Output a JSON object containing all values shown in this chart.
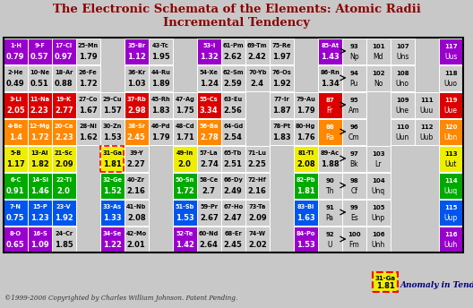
{
  "title1": "The Electronic Schemata of the Elements: Atomic Radii",
  "title2": "Incremental Tendency",
  "copyright": "©1999-2006 Copyrighted by Charles William Johnson. Patent Pending.",
  "anomaly_text": "Anomaly in Tendency",
  "bg_color": "#c8c8c8",
  "rows": [
    {
      "row_idx": 0,
      "cells": [
        {
          "label": "1-H",
          "val": "0.79",
          "col": 0,
          "color": "#9900cc",
          "tc": "white"
        },
        {
          "label": "9-F",
          "val": "0.57",
          "col": 1,
          "color": "#9900cc",
          "tc": "white"
        },
        {
          "label": "17-Cl",
          "val": "0.97",
          "col": 2,
          "color": "#9900cc",
          "tc": "white"
        },
        {
          "label": "25-Mn",
          "val": "1.79",
          "col": 3,
          "color": "#cccccc",
          "tc": "black"
        },
        {
          "label": "35-Br",
          "val": "1.12",
          "col": 5,
          "color": "#9900cc",
          "tc": "white"
        },
        {
          "label": "43-Tc",
          "val": "1.95",
          "col": 6,
          "color": "#cccccc",
          "tc": "black"
        },
        {
          "label": "53-I",
          "val": "1.32",
          "col": 8,
          "color": "#9900cc",
          "tc": "white"
        },
        {
          "label": "61-Pm",
          "val": "2.62",
          "col": 9,
          "color": "#cccccc",
          "tc": "black"
        },
        {
          "label": "69-Tm",
          "val": "2.42",
          "col": 10,
          "color": "#cccccc",
          "tc": "black"
        },
        {
          "label": "75-Re",
          "val": "1.97",
          "col": 11,
          "color": "#cccccc",
          "tc": "black"
        },
        {
          "label": "85-At",
          "val": "1.43",
          "col": 13,
          "color": "#9900cc",
          "tc": "white"
        },
        {
          "label": "93",
          "val": "Np",
          "col": 14,
          "color": "#cccccc",
          "tc": "black",
          "sym": true
        },
        {
          "label": "101",
          "val": "Md",
          "col": 15,
          "color": "#cccccc",
          "tc": "black",
          "sym": true
        },
        {
          "label": "107",
          "val": "Uns",
          "col": 16,
          "color": "#cccccc",
          "tc": "black",
          "sym": true
        },
        {
          "label": "117",
          "val": "Uus",
          "col": 18,
          "color": "#9900cc",
          "tc": "white",
          "sym": true
        }
      ]
    },
    {
      "row_idx": 1,
      "cells": [
        {
          "label": "2-He",
          "val": "0.49",
          "col": 0,
          "color": "#cccccc",
          "tc": "black"
        },
        {
          "label": "10-Ne",
          "val": "0.51",
          "col": 1,
          "color": "#cccccc",
          "tc": "black"
        },
        {
          "label": "18-Ar",
          "val": "0.88",
          "col": 2,
          "color": "#cccccc",
          "tc": "black"
        },
        {
          "label": "26-Fe",
          "val": "1.72",
          "col": 3,
          "color": "#cccccc",
          "tc": "black"
        },
        {
          "label": "36-Kr",
          "val": "1.03",
          "col": 5,
          "color": "#cccccc",
          "tc": "black"
        },
        {
          "label": "44-Ru",
          "val": "1.89",
          "col": 6,
          "color": "#cccccc",
          "tc": "black"
        },
        {
          "label": "54-Xe",
          "val": "1.24",
          "col": 8,
          "color": "#cccccc",
          "tc": "black"
        },
        {
          "label": "62-Sm",
          "val": "2.59",
          "col": 9,
          "color": "#cccccc",
          "tc": "black"
        },
        {
          "label": "70-Yb",
          "val": "2.4",
          "col": 10,
          "color": "#cccccc",
          "tc": "black"
        },
        {
          "label": "76-Os",
          "val": "1.92",
          "col": 11,
          "color": "#cccccc",
          "tc": "black"
        },
        {
          "label": "86-Rn",
          "val": "1.34",
          "col": 13,
          "color": "#cccccc",
          "tc": "black"
        },
        {
          "label": "94",
          "val": "Pu",
          "col": 14,
          "color": "#cccccc",
          "tc": "black",
          "sym": true
        },
        {
          "label": "102",
          "val": "No",
          "col": 15,
          "color": "#cccccc",
          "tc": "black",
          "sym": true
        },
        {
          "label": "108",
          "val": "Uno",
          "col": 16,
          "color": "#cccccc",
          "tc": "black",
          "sym": true
        },
        {
          "label": "118",
          "val": "Uuo",
          "col": 18,
          "color": "#cccccc",
          "tc": "black",
          "sym": true
        }
      ]
    },
    {
      "row_idx": 2,
      "cells": [
        {
          "label": "3-Li",
          "val": "2.05",
          "col": 0,
          "color": "#dd0000",
          "tc": "white"
        },
        {
          "label": "11-Na",
          "val": "2.23",
          "col": 1,
          "color": "#dd0000",
          "tc": "white"
        },
        {
          "label": "19-K",
          "val": "2.77",
          "col": 2,
          "color": "#dd0000",
          "tc": "white"
        },
        {
          "label": "27-Co",
          "val": "1.67",
          "col": 3,
          "color": "#cccccc",
          "tc": "black"
        },
        {
          "label": "29-Cu",
          "val": "1.57",
          "col": 4,
          "color": "#cccccc",
          "tc": "black"
        },
        {
          "label": "37-Rb",
          "val": "2.98",
          "col": 5,
          "color": "#dd0000",
          "tc": "white"
        },
        {
          "label": "45-Rh",
          "val": "1.83",
          "col": 6,
          "color": "#cccccc",
          "tc": "black"
        },
        {
          "label": "47-Ag",
          "val": "1.75",
          "col": 7,
          "color": "#cccccc",
          "tc": "black"
        },
        {
          "label": "55-Cs",
          "val": "3.34",
          "col": 8,
          "color": "#dd0000",
          "tc": "white"
        },
        {
          "label": "63-Eu",
          "val": "2.56",
          "col": 9,
          "color": "#cccccc",
          "tc": "black"
        },
        {
          "label": "77-Ir",
          "val": "1.87",
          "col": 11,
          "color": "#cccccc",
          "tc": "black"
        },
        {
          "label": "79-Au",
          "val": "1.79",
          "col": 12,
          "color": "#cccccc",
          "tc": "black"
        },
        {
          "label": "87",
          "val": "Fr",
          "col": 13,
          "color": "#dd0000",
          "tc": "white",
          "sym": true
        },
        {
          "label": "95",
          "val": "Am",
          "col": 14,
          "color": "#cccccc",
          "tc": "black",
          "sym": true
        },
        {
          "label": "109",
          "val": "Une",
          "col": 16,
          "color": "#cccccc",
          "tc": "black",
          "sym": true
        },
        {
          "label": "111",
          "val": "Uuu",
          "col": 17,
          "color": "#cccccc",
          "tc": "black",
          "sym": true
        },
        {
          "label": "119",
          "val": "Uue",
          "col": 18,
          "color": "#dd0000",
          "tc": "white",
          "sym": true
        }
      ]
    },
    {
      "row_idx": 3,
      "cells": [
        {
          "label": "4-Be",
          "val": "1.4",
          "col": 0,
          "color": "#ff8800",
          "tc": "white"
        },
        {
          "label": "12-Mg",
          "val": "1.72",
          "col": 1,
          "color": "#ff8800",
          "tc": "white"
        },
        {
          "label": "20-Ca",
          "val": "2.23",
          "col": 2,
          "color": "#ff8800",
          "tc": "white"
        },
        {
          "label": "28-Ni",
          "val": "1.62",
          "col": 3,
          "color": "#cccccc",
          "tc": "black"
        },
        {
          "label": "30-Zn",
          "val": "1.53",
          "col": 4,
          "color": "#cccccc",
          "tc": "black"
        },
        {
          "label": "38-Sr",
          "val": "2.45",
          "col": 5,
          "color": "#ff8800",
          "tc": "white"
        },
        {
          "label": "46-Pd",
          "val": "1.79",
          "col": 6,
          "color": "#cccccc",
          "tc": "black"
        },
        {
          "label": "48-Cd",
          "val": "1.71",
          "col": 7,
          "color": "#cccccc",
          "tc": "black"
        },
        {
          "label": "56-Ba",
          "val": "2.78",
          "col": 8,
          "color": "#ff8800",
          "tc": "white"
        },
        {
          "label": "64-Gd",
          "val": "2.54",
          "col": 9,
          "color": "#cccccc",
          "tc": "black"
        },
        {
          "label": "78-Pt",
          "val": "1.83",
          "col": 11,
          "color": "#cccccc",
          "tc": "black"
        },
        {
          "label": "80-Hg",
          "val": "1.76",
          "col": 12,
          "color": "#cccccc",
          "tc": "black"
        },
        {
          "label": "88",
          "val": "Ra",
          "col": 13,
          "color": "#ff8800",
          "tc": "white",
          "sym": true
        },
        {
          "label": "96",
          "val": "Cm",
          "col": 14,
          "color": "#cccccc",
          "tc": "black",
          "sym": true
        },
        {
          "label": "110",
          "val": "Uun",
          "col": 16,
          "color": "#cccccc",
          "tc": "black",
          "sym": true
        },
        {
          "label": "112",
          "val": "Uub",
          "col": 17,
          "color": "#cccccc",
          "tc": "black",
          "sym": true
        },
        {
          "label": "120",
          "val": "Ubn",
          "col": 18,
          "color": "#ff8800",
          "tc": "white",
          "sym": true
        }
      ]
    },
    {
      "row_idx": 4,
      "cells": [
        {
          "label": "5-B",
          "val": "1.17",
          "col": 0,
          "color": "#eeee00",
          "tc": "black"
        },
        {
          "label": "13-Al",
          "val": "1.82",
          "col": 1,
          "color": "#eeee00",
          "tc": "black"
        },
        {
          "label": "21-Sc",
          "val": "2.09",
          "col": 2,
          "color": "#eeee00",
          "tc": "black"
        },
        {
          "label": "31-Ga",
          "val": "1.81",
          "col": 4,
          "color": "#eeee00",
          "tc": "black",
          "anomaly": true
        },
        {
          "label": "39-Y",
          "val": "2.27",
          "col": 5,
          "color": "#cccccc",
          "tc": "black"
        },
        {
          "label": "49-In",
          "val": "2.0",
          "col": 7,
          "color": "#eeee00",
          "tc": "black"
        },
        {
          "label": "57-La",
          "val": "2.74",
          "col": 8,
          "color": "#cccccc",
          "tc": "black"
        },
        {
          "label": "65-Tb",
          "val": "2.51",
          "col": 9,
          "color": "#cccccc",
          "tc": "black"
        },
        {
          "label": "71-Lu",
          "val": "2.25",
          "col": 10,
          "color": "#cccccc",
          "tc": "black"
        },
        {
          "label": "81-Tl",
          "val": "2.08",
          "col": 12,
          "color": "#eeee00",
          "tc": "black"
        },
        {
          "label": "89-Ac",
          "val": "1.88",
          "col": 13,
          "color": "#cccccc",
          "tc": "black"
        },
        {
          "label": "97",
          "val": "Bk",
          "col": 14,
          "color": "#cccccc",
          "tc": "black",
          "sym": true
        },
        {
          "label": "103",
          "val": "Lr",
          "col": 15,
          "color": "#cccccc",
          "tc": "black",
          "sym": true
        },
        {
          "label": "113",
          "val": "Uut",
          "col": 18,
          "color": "#eeee00",
          "tc": "black",
          "sym": true
        }
      ]
    },
    {
      "row_idx": 5,
      "cells": [
        {
          "label": "6-C",
          "val": "0.91",
          "col": 0,
          "color": "#00aa00",
          "tc": "white"
        },
        {
          "label": "14-Si",
          "val": "1.46",
          "col": 1,
          "color": "#00aa00",
          "tc": "white"
        },
        {
          "label": "22-Ti",
          "val": "2.0",
          "col": 2,
          "color": "#00aa00",
          "tc": "white"
        },
        {
          "label": "32-Ge",
          "val": "1.52",
          "col": 4,
          "color": "#00aa00",
          "tc": "white"
        },
        {
          "label": "40-Zr",
          "val": "2.16",
          "col": 5,
          "color": "#cccccc",
          "tc": "black"
        },
        {
          "label": "50-Sn",
          "val": "1.72",
          "col": 7,
          "color": "#00aa00",
          "tc": "white"
        },
        {
          "label": "58-Ce",
          "val": "2.7",
          "col": 8,
          "color": "#cccccc",
          "tc": "black"
        },
        {
          "label": "66-Dy",
          "val": "2.49",
          "col": 9,
          "color": "#cccccc",
          "tc": "black"
        },
        {
          "label": "72-Hf",
          "val": "2.16",
          "col": 10,
          "color": "#cccccc",
          "tc": "black"
        },
        {
          "label": "82-Pb",
          "val": "1.81",
          "col": 12,
          "color": "#00aa00",
          "tc": "white"
        },
        {
          "label": "90",
          "val": "Th",
          "col": 13,
          "color": "#cccccc",
          "tc": "black",
          "sym": true
        },
        {
          "label": "98",
          "val": "Cf",
          "col": 14,
          "color": "#cccccc",
          "tc": "black",
          "sym": true
        },
        {
          "label": "104",
          "val": "Unq",
          "col": 15,
          "color": "#cccccc",
          "tc": "black",
          "sym": true
        },
        {
          "label": "114",
          "val": "Uuq",
          "col": 18,
          "color": "#00aa00",
          "tc": "white",
          "sym": true
        }
      ]
    },
    {
      "row_idx": 6,
      "cells": [
        {
          "label": "7-N",
          "val": "0.75",
          "col": 0,
          "color": "#0055ee",
          "tc": "white"
        },
        {
          "label": "15-P",
          "val": "1.23",
          "col": 1,
          "color": "#0055ee",
          "tc": "white"
        },
        {
          "label": "23-V",
          "val": "1.92",
          "col": 2,
          "color": "#0055ee",
          "tc": "white"
        },
        {
          "label": "33-As",
          "val": "1.33",
          "col": 4,
          "color": "#0055ee",
          "tc": "white"
        },
        {
          "label": "41-Nb",
          "val": "2.08",
          "col": 5,
          "color": "#cccccc",
          "tc": "black"
        },
        {
          "label": "51-Sb",
          "val": "1.53",
          "col": 7,
          "color": "#0055ee",
          "tc": "white"
        },
        {
          "label": "59-Pr",
          "val": "2.67",
          "col": 8,
          "color": "#cccccc",
          "tc": "black"
        },
        {
          "label": "67-Ho",
          "val": "2.47",
          "col": 9,
          "color": "#cccccc",
          "tc": "black"
        },
        {
          "label": "73-Ta",
          "val": "2.09",
          "col": 10,
          "color": "#cccccc",
          "tc": "black"
        },
        {
          "label": "83-Bi",
          "val": "1.63",
          "col": 12,
          "color": "#0055ee",
          "tc": "white"
        },
        {
          "label": "91",
          "val": "Pa",
          "col": 13,
          "color": "#cccccc",
          "tc": "black",
          "sym": true
        },
        {
          "label": "99",
          "val": "Es",
          "col": 14,
          "color": "#cccccc",
          "tc": "black",
          "sym": true
        },
        {
          "label": "105",
          "val": "Unp",
          "col": 15,
          "color": "#cccccc",
          "tc": "black",
          "sym": true
        },
        {
          "label": "115",
          "val": "Uup",
          "col": 18,
          "color": "#0055ee",
          "tc": "white",
          "sym": true
        }
      ]
    },
    {
      "row_idx": 7,
      "cells": [
        {
          "label": "8-O",
          "val": "0.65",
          "col": 0,
          "color": "#9900cc",
          "tc": "white"
        },
        {
          "label": "16-S",
          "val": "1.09",
          "col": 1,
          "color": "#9900cc",
          "tc": "white"
        },
        {
          "label": "24-Cr",
          "val": "1.85",
          "col": 2,
          "color": "#cccccc",
          "tc": "black"
        },
        {
          "label": "34-Se",
          "val": "1.22",
          "col": 4,
          "color": "#9900cc",
          "tc": "white"
        },
        {
          "label": "42-Mo",
          "val": "2.01",
          "col": 5,
          "color": "#cccccc",
          "tc": "black"
        },
        {
          "label": "52-Te",
          "val": "1.42",
          "col": 7,
          "color": "#9900cc",
          "tc": "white"
        },
        {
          "label": "60-Nd",
          "val": "2.64",
          "col": 8,
          "color": "#cccccc",
          "tc": "black"
        },
        {
          "label": "68-Er",
          "val": "2.45",
          "col": 9,
          "color": "#cccccc",
          "tc": "black"
        },
        {
          "label": "74-W",
          "val": "2.02",
          "col": 10,
          "color": "#cccccc",
          "tc": "black"
        },
        {
          "label": "84-Po",
          "val": "1.53",
          "col": 12,
          "color": "#9900cc",
          "tc": "white"
        },
        {
          "label": "92",
          "val": "U",
          "col": 13,
          "color": "#cccccc",
          "tc": "black",
          "sym": true
        },
        {
          "label": "100",
          "val": "Fm",
          "col": 14,
          "color": "#cccccc",
          "tc": "black",
          "sym": true
        },
        {
          "label": "106",
          "val": "Unh",
          "col": 15,
          "color": "#cccccc",
          "tc": "black",
          "sym": true
        },
        {
          "label": "116",
          "val": "Uuh",
          "col": 18,
          "color": "#9900cc",
          "tc": "white",
          "sym": true
        }
      ]
    }
  ],
  "anomaly_cell": {
    "label": "31-Ga",
    "val": "1.81",
    "color": "#eeee00",
    "tc": "black"
  }
}
